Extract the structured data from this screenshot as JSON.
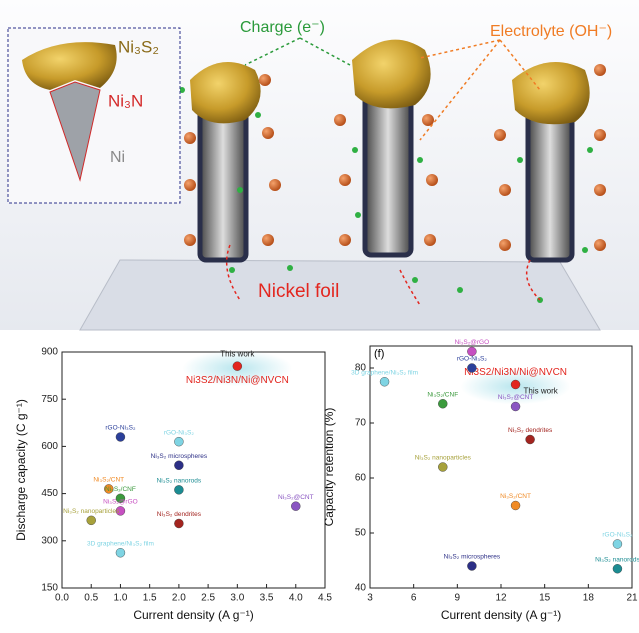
{
  "schematic": {
    "inset_labels": [
      "Ni₃S₂",
      "Ni₃N",
      "Ni"
    ],
    "charge": "Charge (e⁻)",
    "electrolyte": "Electrolyte (OH⁻)",
    "foil": "Nickel foil"
  },
  "chart_data": [
    {
      "type": "scatter",
      "xlabel": "Current density (A g⁻¹)",
      "ylabel": "Discharge capacity (C g⁻¹)",
      "annotation": "Ni3S2/Ni3N/Ni@NVCN",
      "xlim": [
        0,
        4.5
      ],
      "xticks": [
        {
          "value": 0,
          "label": "0.0"
        },
        0.5,
        {
          "value": 1,
          "label": "1.0"
        },
        1.5,
        {
          "value": 2,
          "label": "2.0"
        },
        2.5,
        {
          "value": 3,
          "label": "3.0"
        },
        3.5,
        {
          "value": 4,
          "label": "4.0"
        },
        4.5
      ],
      "ylim": [
        150,
        900
      ],
      "yticks": [
        150,
        300,
        450,
        600,
        750,
        900
      ],
      "series": [
        {
          "name": "This work",
          "color": "#e3261f",
          "x": [
            3
          ],
          "values": [
            855
          ]
        },
        {
          "name": "rGO-Ni₃S₂",
          "color": "#2b3f9a",
          "x": [
            1
          ],
          "values": [
            630
          ]
        },
        {
          "name": "rGO-Ni₃S₂",
          "color": "#7fd4e3",
          "x": [
            2
          ],
          "values": [
            615
          ]
        },
        {
          "name": "Ni₃S₂ microspheres",
          "color": "#2c2f86",
          "x": [
            2
          ],
          "values": [
            540
          ]
        },
        {
          "name": "Ni₃S₂/CNT",
          "color": "#f08a24",
          "x": [
            0.8
          ],
          "values": [
            465
          ]
        },
        {
          "name": "Ni₃S₂ nanorods",
          "color": "#1b8c92",
          "x": [
            2
          ],
          "values": [
            462
          ]
        },
        {
          "name": "Ni₃S₂/CNF",
          "color": "#3b9a3d",
          "x": [
            1
          ],
          "values": [
            435
          ]
        },
        {
          "name": "Ni₃S₂@CNT",
          "color": "#8a56c2",
          "x": [
            4
          ],
          "values": [
            410
          ]
        },
        {
          "name": "Ni₃S₂@rGO",
          "color": "#c64fc1",
          "x": [
            1
          ],
          "values": [
            395
          ]
        },
        {
          "name": "Ni₃S₂ nanoparticles",
          "color": "#a7a13b",
          "x": [
            0.5
          ],
          "values": [
            365
          ]
        },
        {
          "name": "Ni₃S₂ dendrites",
          "color": "#a3241f",
          "x": [
            2
          ],
          "values": [
            355
          ]
        },
        {
          "name": "3D graphene/Ni₃S₂ film",
          "color": "#7fd4e3",
          "x": [
            1
          ],
          "values": [
            262
          ]
        }
      ]
    },
    {
      "type": "scatter",
      "panel": "(f)",
      "xlabel": "Current density (A g⁻¹)",
      "ylabel": "Capacity retention (%)",
      "annotation": "Ni3S2/Ni3N/Ni@NVCN",
      "xlim": [
        3,
        21
      ],
      "xticks": [
        3,
        6,
        9,
        12,
        15,
        18,
        21
      ],
      "ylim": [
        40,
        84
      ],
      "yticks": [
        40,
        50,
        60,
        70,
        80
      ],
      "series": [
        {
          "name": "This work",
          "color": "#e3261f",
          "x": [
            13
          ],
          "values": [
            77
          ]
        },
        {
          "name": "Ni₃S₂@rGO",
          "color": "#c64fc1",
          "x": [
            10
          ],
          "values": [
            83
          ]
        },
        {
          "name": "rGO-Ni₃S₂",
          "color": "#2b3f9a",
          "x": [
            10
          ],
          "values": [
            80
          ]
        },
        {
          "name": "3D graphene/Ni₃S₂ film",
          "color": "#7fd4e3",
          "x": [
            4
          ],
          "values": [
            77.5
          ]
        },
        {
          "name": "Ni₃S₂/CNF",
          "color": "#3b9a3d",
          "x": [
            8
          ],
          "values": [
            73.5
          ]
        },
        {
          "name": "Ni₃S₂@CNT",
          "color": "#8a56c2",
          "x": [
            13
          ],
          "values": [
            73
          ]
        },
        {
          "name": "Ni₃S₂ dendrites",
          "color": "#a3241f",
          "x": [
            14
          ],
          "values": [
            67
          ]
        },
        {
          "name": "Ni₃S₂ nanoparticles",
          "color": "#a7a13b",
          "x": [
            8
          ],
          "values": [
            62
          ]
        },
        {
          "name": "Ni₃S₂/CNT",
          "color": "#f08a24",
          "x": [
            13
          ],
          "values": [
            55
          ]
        },
        {
          "name": "rGO-Ni₃S₂",
          "color": "#7fd4e3",
          "x": [
            20
          ],
          "values": [
            48
          ]
        },
        {
          "name": "Ni₃S₂ microspheres",
          "color": "#2c2f86",
          "x": [
            10
          ],
          "values": [
            44
          ]
        },
        {
          "name": "Ni₃S₂ nanorods",
          "color": "#1b8c92",
          "x": [
            20
          ],
          "values": [
            43.5
          ]
        }
      ]
    }
  ]
}
